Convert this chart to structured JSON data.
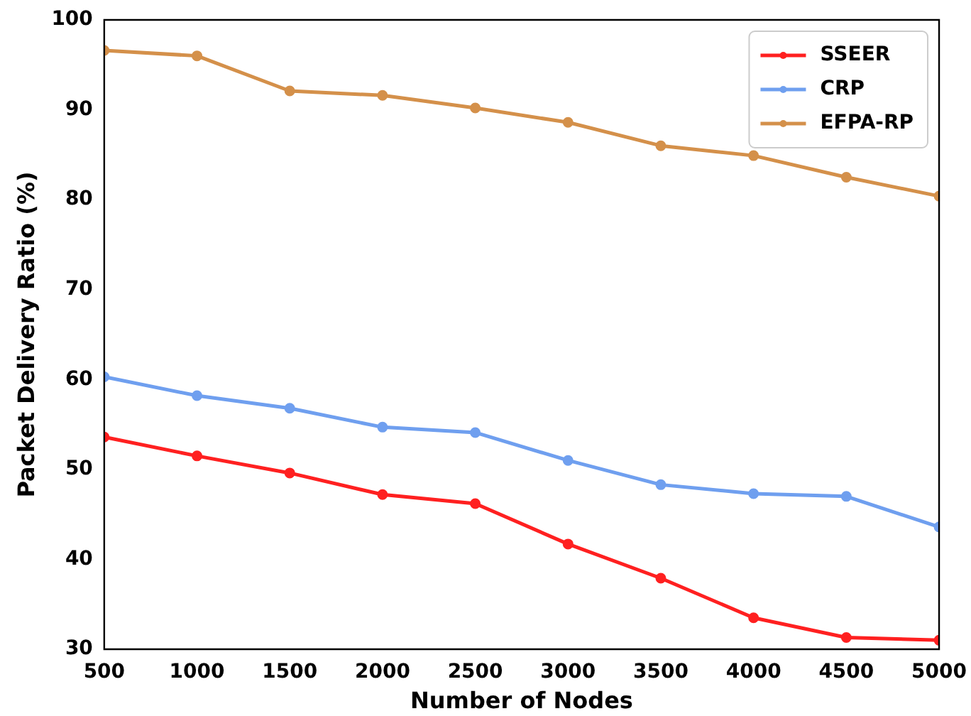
{
  "chart_data": {
    "type": "line",
    "xlabel": "Number of Nodes",
    "ylabel": "Packet Delivery Ratio (%)",
    "x": [
      500,
      1000,
      1500,
      2000,
      2500,
      3000,
      3500,
      4000,
      4500,
      5000
    ],
    "series": [
      {
        "name": "SSEER",
        "color": "#ff2020",
        "values": [
          53.6,
          51.5,
          49.6,
          47.2,
          46.2,
          41.7,
          37.9,
          33.5,
          31.3,
          31.0
        ]
      },
      {
        "name": "CRP",
        "color": "#6f9fef",
        "values": [
          60.3,
          58.2,
          56.8,
          54.7,
          54.1,
          51.0,
          48.3,
          47.3,
          47.0,
          43.6
        ]
      },
      {
        "name": "EFPA-RP",
        "color": "#d4904a",
        "values": [
          96.6,
          96.0,
          92.1,
          91.6,
          90.2,
          88.6,
          86.0,
          84.9,
          82.5,
          80.4
        ]
      }
    ],
    "xlim": [
      500,
      5000
    ],
    "xticks": [
      500,
      1000,
      1500,
      2000,
      2500,
      3000,
      3500,
      4000,
      4500,
      5000
    ],
    "ylim": [
      30,
      100
    ],
    "yticks": [
      30,
      40,
      50,
      60,
      70,
      80,
      90,
      100
    ],
    "grid": false,
    "legend": "top right",
    "marker": "circle",
    "line_style": "solid"
  }
}
